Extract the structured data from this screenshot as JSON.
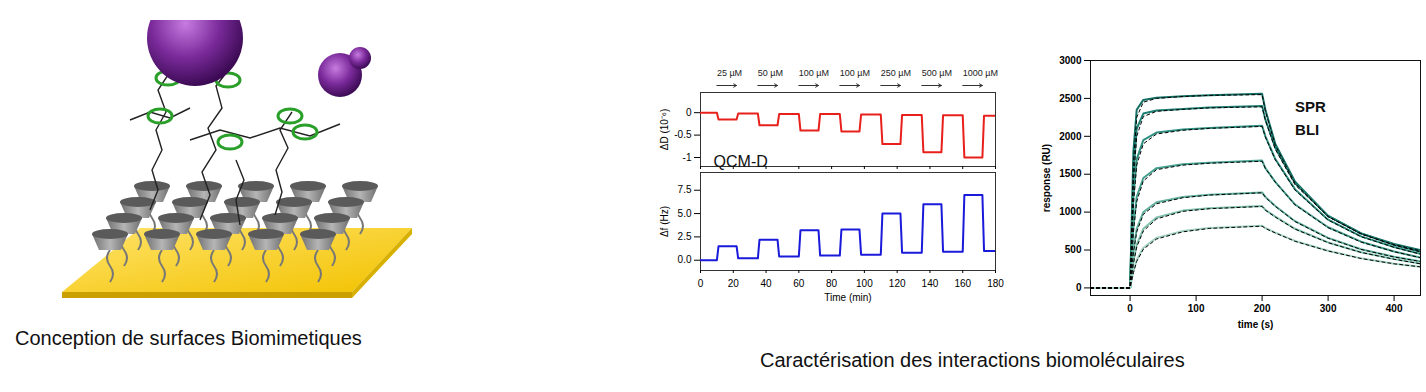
{
  "captions": [
    "Conception de surfaces Biomimetiques",
    "Caractérisation des interactions biomoléculaires"
  ],
  "chart_data": [
    {
      "type": "line",
      "y_label": "ΔD (10⁻⁶)",
      "tick_labels": "y",
      "xlim": [
        0,
        180
      ],
      "xticks": [
        0,
        20,
        40,
        60,
        80,
        100,
        120,
        140,
        160,
        180
      ],
      "ylim": [
        -1.2,
        0.45
      ],
      "yticks": [
        -1,
        -0.5,
        0
      ],
      "x": [
        0,
        10,
        11,
        22,
        23,
        35,
        36,
        47,
        48,
        60,
        61,
        72,
        73,
        85,
        86,
        97,
        98,
        110,
        111,
        122,
        123,
        135,
        136,
        147,
        148,
        160,
        161,
        172,
        173,
        180
      ],
      "series": [
        {
          "color": "#e8201c",
          "values": [
            0,
            0,
            -0.15,
            -0.15,
            -0.02,
            -0.02,
            -0.28,
            -0.28,
            -0.03,
            -0.03,
            -0.4,
            -0.4,
            -0.03,
            -0.03,
            -0.42,
            -0.42,
            -0.04,
            -0.04,
            -0.7,
            -0.7,
            -0.05,
            -0.05,
            -0.88,
            -0.88,
            -0.06,
            -0.06,
            -1.0,
            -1.0,
            -0.07,
            -0.07
          ]
        }
      ],
      "injections": [
        {
          "label": "25 µM",
          "start": 10,
          "end": 22
        },
        {
          "label": "50 µM",
          "start": 35,
          "end": 47
        },
        {
          "label": "100 µM",
          "start": 60,
          "end": 72
        },
        {
          "label": "100 µM",
          "start": 85,
          "end": 97
        },
        {
          "label": "250 µM",
          "start": 110,
          "end": 122
        },
        {
          "label": "500 µM",
          "start": 135,
          "end": 147
        },
        {
          "label": "1000 µM",
          "start": 160,
          "end": 172
        }
      ],
      "annotations": [
        {
          "text": "QCM-D",
          "x": 8,
          "y": -1.1
        }
      ]
    },
    {
      "type": "line",
      "x_label": "Time (min)",
      "y_label": "Δf (Hz)",
      "xlim": [
        0,
        180
      ],
      "xticks": [
        0,
        20,
        40,
        60,
        80,
        100,
        120,
        140,
        160,
        180
      ],
      "ylim": [
        -1.1,
        9.4
      ],
      "yticks": [
        {
          "value": 0,
          "label": "0.0"
        },
        {
          "value": 2.5,
          "label": "2.5"
        },
        {
          "value": 5,
          "label": "5.0"
        },
        {
          "value": 7.5,
          "label": "7.5"
        }
      ],
      "x": [
        0,
        10,
        11,
        22,
        23,
        35,
        36,
        47,
        48,
        60,
        61,
        72,
        73,
        85,
        86,
        97,
        98,
        110,
        111,
        122,
        123,
        135,
        136,
        147,
        148,
        160,
        161,
        172,
        173,
        180
      ],
      "series": [
        {
          "color": "#1a1adb",
          "values": [
            0,
            0,
            1.5,
            1.5,
            0.2,
            0.2,
            2.2,
            2.2,
            0.4,
            0.4,
            3.2,
            3.2,
            0.5,
            0.5,
            3.3,
            3.3,
            0.6,
            0.6,
            5.0,
            5.0,
            0.8,
            0.8,
            6.0,
            6.0,
            0.9,
            0.9,
            7.0,
            7.0,
            1.0,
            1.0
          ]
        }
      ]
    },
    {
      "type": "line",
      "x_label": "time (s)",
      "y_label": "response (RU)",
      "xlim": [
        -60,
        440
      ],
      "xticks": [
        0,
        100,
        200,
        300,
        400
      ],
      "ylim": [
        -100,
        3000
      ],
      "yticks": [
        0,
        500,
        1000,
        1500,
        2000,
        2500,
        3000
      ],
      "x": [
        -60,
        -1,
        0,
        5,
        10,
        20,
        40,
        80,
        120,
        200,
        205,
        220,
        250,
        300,
        350,
        400,
        440
      ],
      "series": [
        {
          "color": "#136f63",
          "values": [
            0,
            0,
            0,
            1800,
            2350,
            2480,
            2510,
            2530,
            2540,
            2560,
            2350,
            1900,
            1400,
            950,
            720,
            580,
            500
          ]
        },
        {
          "color": "#1e7f72",
          "values": [
            0,
            0,
            0,
            1500,
            2100,
            2300,
            2340,
            2360,
            2380,
            2400,
            2220,
            1850,
            1380,
            950,
            720,
            570,
            480
          ]
        },
        {
          "color": "#2f8f80",
          "values": [
            0,
            0,
            0,
            1200,
            1700,
            1950,
            2050,
            2090,
            2110,
            2140,
            2000,
            1700,
            1300,
            900,
            680,
            540,
            450
          ]
        },
        {
          "color": "#46a08f",
          "values": [
            0,
            0,
            0,
            800,
            1200,
            1450,
            1580,
            1630,
            1650,
            1680,
            1580,
            1400,
            1100,
            800,
            610,
            480,
            400
          ]
        },
        {
          "color": "#62b09e",
          "values": [
            0,
            0,
            0,
            500,
            780,
            1000,
            1130,
            1200,
            1230,
            1260,
            1200,
            1080,
            880,
            660,
            510,
            410,
            350
          ]
        },
        {
          "color": "#80c0ae",
          "values": [
            0,
            0,
            0,
            350,
            570,
            780,
            930,
            1020,
            1050,
            1080,
            1030,
            940,
            780,
            600,
            470,
            380,
            320
          ]
        },
        {
          "color": "#a3d2c3",
          "values": [
            0,
            0,
            0,
            220,
            370,
            530,
            660,
            750,
            790,
            820,
            790,
            730,
            620,
            490,
            390,
            320,
            280
          ]
        },
        {
          "color": "#000000",
          "line_style": "dashed",
          "values": [
            0,
            0,
            0,
            1650,
            2250,
            2450,
            2500,
            2525,
            2540,
            2550,
            2330,
            1880,
            1380,
            940,
            710,
            570,
            490
          ]
        },
        {
          "color": "#000000",
          "line_style": "dashed",
          "values": [
            0,
            0,
            0,
            1400,
            2000,
            2260,
            2330,
            2355,
            2375,
            2390,
            2210,
            1830,
            1360,
            940,
            715,
            565,
            475
          ]
        },
        {
          "color": "#000000",
          "line_style": "dashed",
          "values": [
            0,
            0,
            0,
            1100,
            1620,
            1900,
            2030,
            2080,
            2105,
            2130,
            1990,
            1690,
            1290,
            895,
            675,
            535,
            445
          ]
        },
        {
          "color": "#000000",
          "line_style": "dashed",
          "values": [
            0,
            0,
            0,
            740,
            1140,
            1410,
            1560,
            1620,
            1645,
            1670,
            1575,
            1395,
            1095,
            795,
            605,
            478,
            398
          ]
        },
        {
          "color": "#000000",
          "line_style": "dashed",
          "values": [
            0,
            0,
            0,
            460,
            740,
            970,
            1110,
            1190,
            1225,
            1255,
            1195,
            1075,
            875,
            655,
            508,
            408,
            348
          ]
        },
        {
          "color": "#000000",
          "line_style": "dashed",
          "values": [
            0,
            0,
            0,
            320,
            540,
            750,
            910,
            1010,
            1045,
            1075,
            1025,
            935,
            775,
            597,
            468,
            378,
            318
          ]
        },
        {
          "color": "#000000",
          "line_style": "dashed",
          "values": [
            0,
            0,
            0,
            200,
            350,
            510,
            645,
            740,
            785,
            815,
            785,
            725,
            615,
            487,
            388,
            318,
            278
          ]
        }
      ],
      "annotations": [
        {
          "text": "SPR",
          "x": 250,
          "y": 2380
        },
        {
          "text": "BLI",
          "x": 250,
          "y": 2080
        }
      ]
    }
  ]
}
